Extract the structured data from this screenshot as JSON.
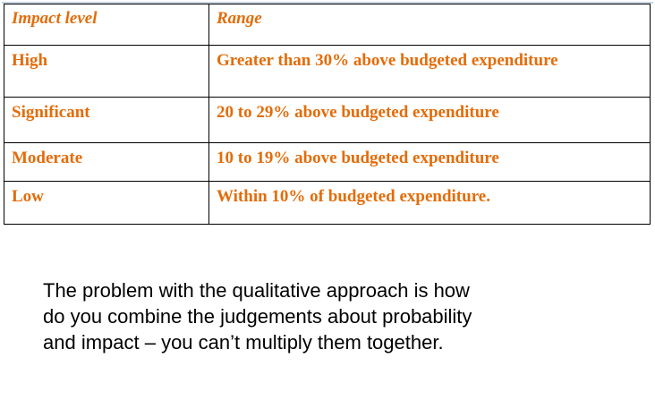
{
  "table": {
    "headers": [
      "Impact level",
      "Range"
    ],
    "rows": [
      {
        "level": "High",
        "range": "Greater than 30% above budgeted expenditure"
      },
      {
        "level": "Significant",
        "range": "20 to 29% above budgeted expenditure"
      },
      {
        "level": "Moderate",
        "range": "10 to 19% above budgeted expenditure"
      },
      {
        "level": "Low",
        "range": "Within 10% of budgeted expenditure."
      }
    ]
  },
  "note": {
    "lines": [
      "The problem with the qualitative approach is how",
      "do you combine the judgements about probability",
      "and impact – you can’t multiply them together."
    ]
  },
  "colors": {
    "table_text": "#e36c09",
    "border": "#000000",
    "note_text": "#000000"
  }
}
